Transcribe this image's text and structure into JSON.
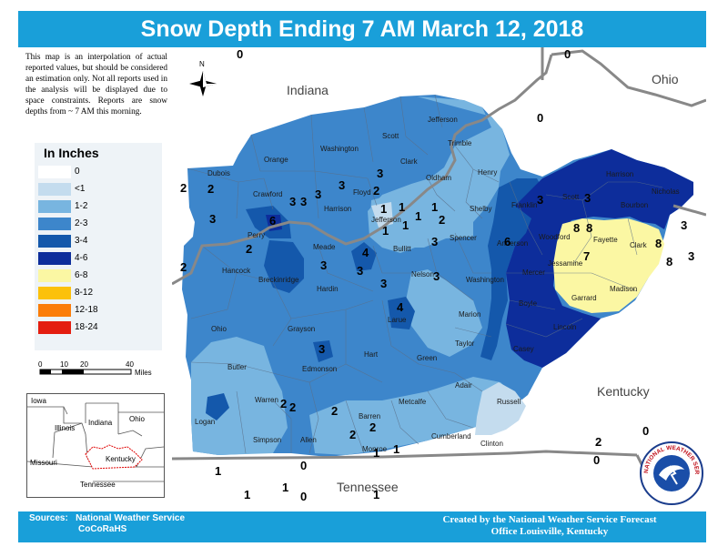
{
  "title": "Snow Depth Ending 7 AM March 12, 2018",
  "disclaimer": "This map is an interpolation of actual reported values, but should be considered an estimation only. Not all reports used in the analysis will be displayed due to space constraints. Reports are snow depths from ~ 7 AM this morning.",
  "legend": {
    "title": "In Inches",
    "items": [
      {
        "label": "0",
        "color": "#ffffff"
      },
      {
        "label": "<1",
        "color": "#c4dcee"
      },
      {
        "label": "1-2",
        "color": "#78b5e0"
      },
      {
        "label": "2-3",
        "color": "#3d86cb"
      },
      {
        "label": "3-4",
        "color": "#1458ab"
      },
      {
        "label": "4-6",
        "color": "#0d2d9b"
      },
      {
        "label": "6-8",
        "color": "#fbf7a3"
      },
      {
        "label": "8-12",
        "color": "#fcc10a"
      },
      {
        "label": "12-18",
        "color": "#fb7d09"
      },
      {
        "label": "18-24",
        "color": "#e41d0f"
      }
    ]
  },
  "scale": {
    "labels": [
      "0",
      "10",
      "20",
      "40"
    ],
    "unit": "Miles"
  },
  "north_label": "N",
  "state_labels": {
    "indiana": "Indiana",
    "ohio": "Ohio",
    "kentucky": "Kentucky",
    "tennessee": "Tennessee"
  },
  "inset_labels": {
    "iowa": "Iowa",
    "illinois": "Illinois",
    "indiana": "Indiana",
    "ohio": "Ohio",
    "missouri": "Missouri",
    "kentucky": "Kentucky",
    "tennessee": "Tennessee"
  },
  "counties": {
    "jefferson_in": "Jefferson",
    "scott": "Scott",
    "washington_in": "Washington",
    "orange": "Orange",
    "dubois": "Dubois",
    "crawford": "Crawford",
    "harrison_in": "Harrison",
    "floyd": "Floyd",
    "clark_in": "Clark",
    "trimble": "Trimble",
    "henry": "Henry",
    "oldham": "Oldham",
    "jefferson_ky": "Jefferson",
    "shelby": "Shelby",
    "franklin": "Franklin",
    "scott_ky": "Scott",
    "harrison_ky": "Harrison",
    "nicholas": "Nicholas",
    "bourbon": "Bourbon",
    "woodford": "Woodford",
    "fayette": "Fayette",
    "clark_ky": "Clark",
    "jessamine": "Jessamine",
    "madison": "Madison",
    "garrard": "Garrard",
    "anderson": "Anderson",
    "mercer": "Mercer",
    "boyle": "Boyle",
    "lincoln": "Lincoln",
    "casey": "Casey",
    "perry": "Perry",
    "hancock": "Hancock",
    "meade": "Meade",
    "breckinridge": "Breckinridge",
    "bullitt": "Bullitt",
    "spencer": "Spencer",
    "nelson": "Nelson",
    "hardin": "Hardin",
    "washington_ky": "Washington",
    "marion": "Marion",
    "larue": "Larue",
    "ohio": "Ohio",
    "grayson": "Grayson",
    "taylor": "Taylor",
    "hart": "Hart",
    "green": "Green",
    "butler": "Butler",
    "edmonson": "Edmonson",
    "adair": "Adair",
    "warren": "Warren",
    "russell": "Russell",
    "logan": "Logan",
    "metcalfe": "Metcalfe",
    "barren": "Barren",
    "simpson": "Simpson",
    "allen": "Allen",
    "cumberland": "Cumberland",
    "monroe": "Monroe",
    "clinton": "Clinton"
  },
  "observations": [
    "0",
    "0",
    "0",
    "2",
    "2",
    "3",
    "3",
    "3",
    "3",
    "6",
    "3",
    "2",
    "3",
    "1",
    "1",
    "1",
    "1",
    "2",
    "3",
    "1",
    "1",
    "3",
    "3",
    "6",
    "8",
    "8",
    "7",
    "8",
    "8",
    "3",
    "3",
    "2",
    "2",
    "4",
    "3",
    "3",
    "4",
    "3",
    "3",
    "3",
    "2",
    "2",
    "2",
    "2",
    "2",
    "1",
    "1",
    "1",
    "1",
    "1",
    "1",
    "0",
    "0",
    "2",
    "0",
    "0",
    "0",
    "0",
    "1",
    "1"
  ],
  "footer": {
    "sources_label": "Sources:",
    "sources": [
      "National Weather Service",
      "CoCoRaHS"
    ],
    "credit_line1": "Created by the National Weather Service Forecast",
    "credit_line2": "Office Louisville, Kentucky"
  },
  "logo_text": "NATIONAL WEATHER SERVICE"
}
